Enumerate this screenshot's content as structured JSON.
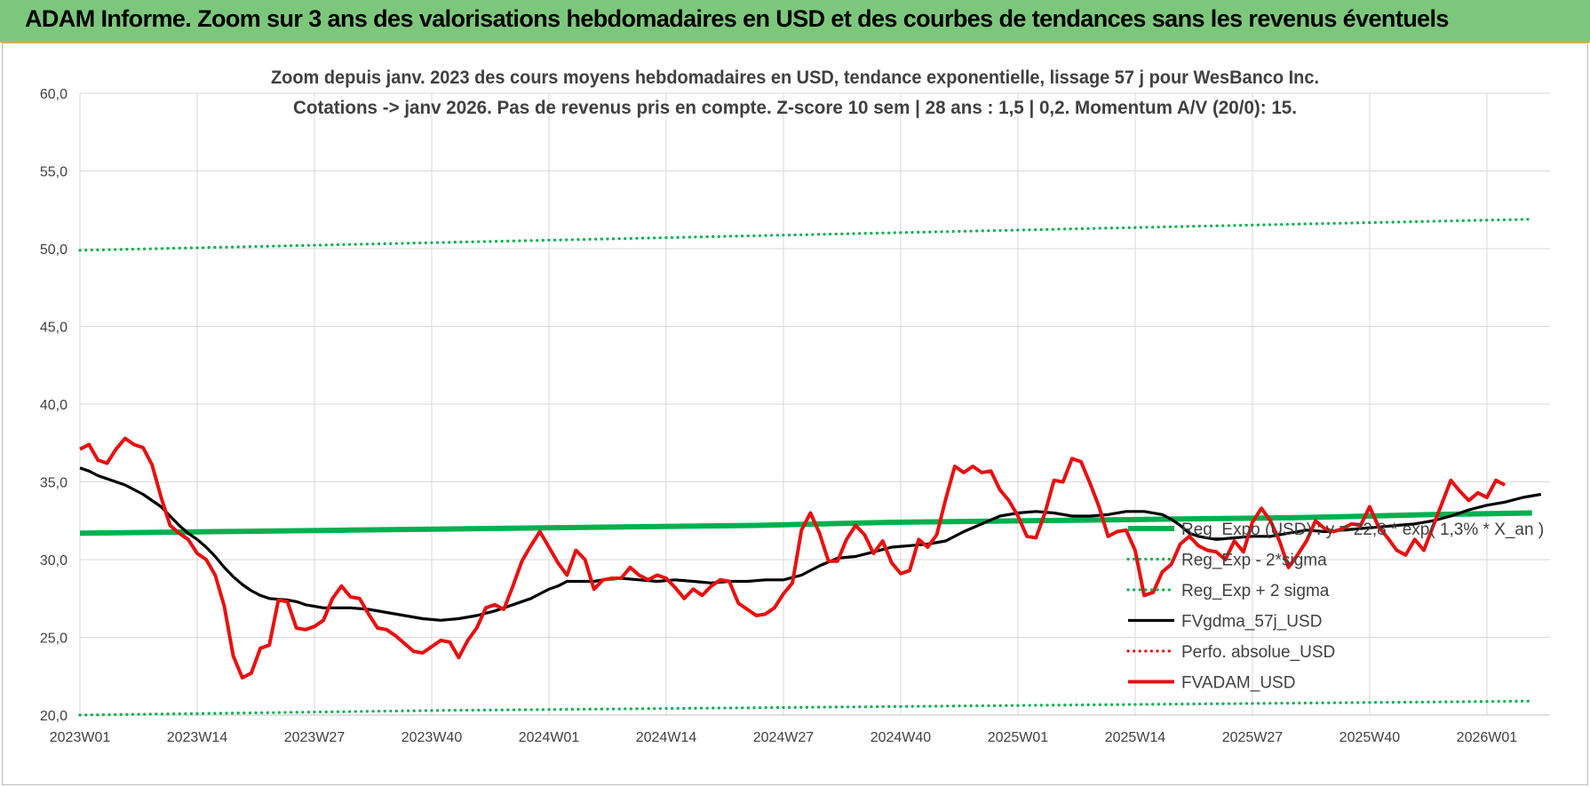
{
  "banner": {
    "title": "ADAM Informe. Zoom sur 3 ans des valorisations hebdomadaires en USD et des courbes de tendances sans les revenus éventuels"
  },
  "colors": {
    "banner_bg": "#7dc77d",
    "trend_green": "#00b050",
    "black_line": "#000000",
    "red_line": "#e81010",
    "grid": "#d9d9d9",
    "text": "#404040",
    "title_text": "#404040"
  },
  "chart_data": {
    "type": "line",
    "title": "Zoom depuis janv. 2023 des cours moyens hebdomadaires en USD, tendance exponentielle, lissage 57 j pour WesBanco Inc.",
    "subtitle": "Cotations -> janv 2026. Pas de revenus pris en compte. Z-score 10 sem | 28 ans : 1,5 | 0,2. Momentum A/V (20/0): 15.",
    "ylim": [
      20,
      60
    ],
    "y_ticks": [
      "20,0",
      "25,0",
      "30,0",
      "35,0",
      "40,0",
      "45,0",
      "50,0",
      "55,0",
      "60,0"
    ],
    "x_ticks": [
      "2023W01",
      "2023W14",
      "2023W27",
      "2023W40",
      "2024W01",
      "2024W14",
      "2024W27",
      "2024W40",
      "2025W01",
      "2025W14",
      "2025W27",
      "2025W40",
      "2026W01"
    ],
    "x_range_weeks": [
      0,
      163
    ],
    "legend_position": "right",
    "series": [
      {
        "name": "Reg_Expo (USD) : y = 22,8 * exp( 1,3% * X_an )",
        "style": "solid-thick",
        "color": "#00b050",
        "points": [
          [
            0,
            31.7
          ],
          [
            15,
            31.8
          ],
          [
            30,
            31.9
          ],
          [
            45,
            32.0
          ],
          [
            60,
            32.1
          ],
          [
            75,
            32.2
          ],
          [
            90,
            32.4
          ],
          [
            105,
            32.5
          ],
          [
            120,
            32.6
          ],
          [
            135,
            32.7
          ],
          [
            150,
            32.9
          ],
          [
            161,
            33.0
          ]
        ]
      },
      {
        "name": "Reg_Exp - 2*sigma",
        "style": "dotted",
        "color": "#00b050",
        "points": [
          [
            0,
            20.0
          ],
          [
            40,
            20.3
          ],
          [
            80,
            20.5
          ],
          [
            120,
            20.7
          ],
          [
            161,
            20.9
          ]
        ]
      },
      {
        "name": "Reg_Exp + 2 sigma",
        "style": "dotted",
        "color": "#00b050",
        "points": [
          [
            0,
            49.9
          ],
          [
            40,
            50.4
          ],
          [
            80,
            50.9
          ],
          [
            120,
            51.4
          ],
          [
            161,
            51.9
          ]
        ]
      },
      {
        "name": "FVgdma_57j_USD",
        "style": "solid",
        "color": "#000000",
        "points": [
          [
            0,
            35.9
          ],
          [
            1,
            35.7
          ],
          [
            2,
            35.4
          ],
          [
            3,
            35.2
          ],
          [
            5,
            34.8
          ],
          [
            7,
            34.2
          ],
          [
            9,
            33.4
          ],
          [
            10,
            32.8
          ],
          [
            11,
            32.2
          ],
          [
            12,
            31.7
          ],
          [
            13,
            31.3
          ],
          [
            14,
            30.8
          ],
          [
            15,
            30.2
          ],
          [
            16,
            29.5
          ],
          [
            17,
            28.9
          ],
          [
            18,
            28.4
          ],
          [
            19,
            28.0
          ],
          [
            20,
            27.7
          ],
          [
            21,
            27.5
          ],
          [
            23,
            27.4
          ],
          [
            24,
            27.3
          ],
          [
            25,
            27.1
          ],
          [
            27,
            26.9
          ],
          [
            30,
            26.9
          ],
          [
            32,
            26.8
          ],
          [
            34,
            26.6
          ],
          [
            36,
            26.4
          ],
          [
            38,
            26.2
          ],
          [
            40,
            26.1
          ],
          [
            42,
            26.2
          ],
          [
            44,
            26.4
          ],
          [
            46,
            26.7
          ],
          [
            48,
            27.1
          ],
          [
            50,
            27.5
          ],
          [
            51,
            27.8
          ],
          [
            52,
            28.1
          ],
          [
            53,
            28.3
          ],
          [
            54,
            28.6
          ],
          [
            57,
            28.6
          ],
          [
            58,
            28.7
          ],
          [
            60,
            28.8
          ],
          [
            62,
            28.7
          ],
          [
            64,
            28.6
          ],
          [
            66,
            28.7
          ],
          [
            68,
            28.6
          ],
          [
            70,
            28.5
          ],
          [
            72,
            28.6
          ],
          [
            74,
            28.6
          ],
          [
            76,
            28.7
          ],
          [
            78,
            28.7
          ],
          [
            80,
            29.0
          ],
          [
            82,
            29.6
          ],
          [
            84,
            30.1
          ],
          [
            86,
            30.2
          ],
          [
            88,
            30.5
          ],
          [
            90,
            30.8
          ],
          [
            92,
            30.9
          ],
          [
            94,
            31.0
          ],
          [
            96,
            31.2
          ],
          [
            98,
            31.8
          ],
          [
            100,
            32.3
          ],
          [
            102,
            32.8
          ],
          [
            104,
            33.0
          ],
          [
            106,
            33.1
          ],
          [
            108,
            33.0
          ],
          [
            110,
            32.8
          ],
          [
            112,
            32.8
          ],
          [
            114,
            32.9
          ],
          [
            116,
            33.1
          ],
          [
            118,
            33.1
          ],
          [
            120,
            32.9
          ],
          [
            121,
            32.6
          ],
          [
            122,
            32.2
          ],
          [
            123,
            31.7
          ],
          [
            124,
            31.5
          ],
          [
            126,
            31.3
          ],
          [
            128,
            31.4
          ],
          [
            130,
            31.5
          ],
          [
            132,
            31.5
          ],
          [
            134,
            31.7
          ],
          [
            136,
            31.9
          ],
          [
            138,
            31.8
          ],
          [
            140,
            31.9
          ],
          [
            142,
            32.0
          ],
          [
            144,
            32.1
          ],
          [
            146,
            32.2
          ],
          [
            148,
            32.3
          ],
          [
            150,
            32.5
          ],
          [
            152,
            32.8
          ],
          [
            154,
            33.2
          ],
          [
            156,
            33.5
          ],
          [
            158,
            33.7
          ],
          [
            160,
            34.0
          ],
          [
            162,
            34.2
          ]
        ]
      },
      {
        "name": "Perfo. absolue_USD",
        "style": "dotted",
        "color": "#e81010",
        "points": []
      },
      {
        "name": "FVADAM_USD",
        "style": "solid-thick",
        "color": "#e81010",
        "points": [
          [
            0,
            37.1
          ],
          [
            1,
            37.4
          ],
          [
            2,
            36.4
          ],
          [
            3,
            36.2
          ],
          [
            4,
            37.1
          ],
          [
            5,
            37.8
          ],
          [
            6,
            37.4
          ],
          [
            7,
            37.2
          ],
          [
            8,
            36.1
          ],
          [
            9,
            34.0
          ],
          [
            10,
            32.2
          ],
          [
            11,
            31.7
          ],
          [
            12,
            31.3
          ],
          [
            13,
            30.4
          ],
          [
            14,
            30.0
          ],
          [
            15,
            29.0
          ],
          [
            16,
            27.0
          ],
          [
            17,
            23.8
          ],
          [
            18,
            22.4
          ],
          [
            19,
            22.7
          ],
          [
            20,
            24.3
          ],
          [
            21,
            24.5
          ],
          [
            22,
            27.4
          ],
          [
            23,
            27.3
          ],
          [
            24,
            25.6
          ],
          [
            25,
            25.5
          ],
          [
            26,
            25.7
          ],
          [
            27,
            26.1
          ],
          [
            28,
            27.5
          ],
          [
            29,
            28.3
          ],
          [
            30,
            27.6
          ],
          [
            31,
            27.5
          ],
          [
            32,
            26.5
          ],
          [
            33,
            25.6
          ],
          [
            34,
            25.5
          ],
          [
            35,
            25.1
          ],
          [
            36,
            24.6
          ],
          [
            37,
            24.1
          ],
          [
            38,
            24.0
          ],
          [
            39,
            24.4
          ],
          [
            40,
            24.8
          ],
          [
            41,
            24.7
          ],
          [
            42,
            23.7
          ],
          [
            43,
            24.8
          ],
          [
            44,
            25.6
          ],
          [
            45,
            26.9
          ],
          [
            46,
            27.1
          ],
          [
            47,
            26.8
          ],
          [
            48,
            28.3
          ],
          [
            49,
            29.9
          ],
          [
            50,
            30.9
          ],
          [
            51,
            31.8
          ],
          [
            52,
            30.8
          ],
          [
            53,
            29.8
          ],
          [
            54,
            29.0
          ],
          [
            55,
            30.6
          ],
          [
            56,
            30.0
          ],
          [
            57,
            28.1
          ],
          [
            58,
            28.7
          ],
          [
            59,
            28.8
          ],
          [
            60,
            28.8
          ],
          [
            61,
            29.5
          ],
          [
            62,
            29.0
          ],
          [
            63,
            28.7
          ],
          [
            64,
            29.0
          ],
          [
            65,
            28.8
          ],
          [
            66,
            28.2
          ],
          [
            67,
            27.5
          ],
          [
            68,
            28.1
          ],
          [
            69,
            27.7
          ],
          [
            70,
            28.3
          ],
          [
            71,
            28.7
          ],
          [
            72,
            28.6
          ],
          [
            73,
            27.2
          ],
          [
            74,
            26.8
          ],
          [
            75,
            26.4
          ],
          [
            76,
            26.5
          ],
          [
            77,
            26.9
          ],
          [
            78,
            27.8
          ],
          [
            79,
            28.5
          ],
          [
            80,
            31.9
          ],
          [
            81,
            33.0
          ],
          [
            82,
            31.7
          ],
          [
            83,
            29.9
          ],
          [
            84,
            29.9
          ],
          [
            85,
            31.3
          ],
          [
            86,
            32.2
          ],
          [
            87,
            31.6
          ],
          [
            88,
            30.4
          ],
          [
            89,
            31.2
          ],
          [
            90,
            29.8
          ],
          [
            91,
            29.1
          ],
          [
            92,
            29.3
          ],
          [
            93,
            31.3
          ],
          [
            94,
            30.8
          ],
          [
            95,
            31.6
          ],
          [
            96,
            33.9
          ],
          [
            97,
            36.0
          ],
          [
            98,
            35.6
          ],
          [
            99,
            36.0
          ],
          [
            100,
            35.6
          ],
          [
            101,
            35.7
          ],
          [
            102,
            34.5
          ],
          [
            103,
            33.8
          ],
          [
            104,
            32.8
          ],
          [
            105,
            31.5
          ],
          [
            106,
            31.4
          ],
          [
            107,
            33.0
          ],
          [
            108,
            35.1
          ],
          [
            109,
            35.0
          ],
          [
            110,
            36.5
          ],
          [
            111,
            36.3
          ],
          [
            112,
            34.9
          ],
          [
            113,
            33.4
          ],
          [
            114,
            31.5
          ],
          [
            115,
            31.8
          ],
          [
            116,
            31.9
          ],
          [
            117,
            30.6
          ],
          [
            118,
            27.7
          ],
          [
            119,
            27.9
          ],
          [
            120,
            29.2
          ],
          [
            121,
            29.7
          ],
          [
            122,
            31.0
          ],
          [
            123,
            31.5
          ],
          [
            124,
            30.9
          ],
          [
            125,
            30.6
          ],
          [
            126,
            30.5
          ],
          [
            127,
            30.0
          ],
          [
            128,
            31.2
          ],
          [
            129,
            30.5
          ],
          [
            130,
            32.4
          ],
          [
            131,
            33.3
          ],
          [
            132,
            32.5
          ],
          [
            133,
            31.2
          ],
          [
            134,
            29.5
          ],
          [
            135,
            30.3
          ],
          [
            136,
            31.2
          ],
          [
            137,
            32.5
          ],
          [
            138,
            32.0
          ],
          [
            139,
            31.8
          ],
          [
            140,
            32.0
          ],
          [
            141,
            32.3
          ],
          [
            142,
            32.2
          ],
          [
            143,
            33.4
          ],
          [
            144,
            32.1
          ],
          [
            145,
            31.4
          ],
          [
            146,
            30.6
          ],
          [
            147,
            30.3
          ],
          [
            148,
            31.3
          ],
          [
            149,
            30.6
          ],
          [
            150,
            32.1
          ],
          [
            151,
            33.6
          ],
          [
            152,
            35.1
          ],
          [
            153,
            34.4
          ],
          [
            154,
            33.8
          ],
          [
            155,
            34.3
          ],
          [
            156,
            34.0
          ],
          [
            157,
            35.1
          ],
          [
            158,
            34.8
          ]
        ]
      }
    ]
  }
}
